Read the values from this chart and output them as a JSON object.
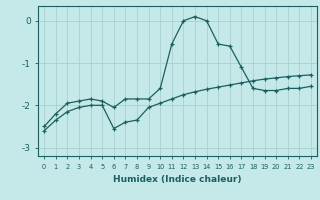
{
  "xlabel": "Humidex (Indice chaleur)",
  "x": [
    0,
    1,
    2,
    3,
    4,
    5,
    6,
    7,
    8,
    9,
    10,
    11,
    12,
    13,
    14,
    15,
    16,
    17,
    18,
    19,
    20,
    21,
    22,
    23
  ],
  "line1": [
    -2.5,
    -2.2,
    -1.95,
    -1.9,
    -1.85,
    -1.9,
    -2.05,
    -1.85,
    -1.85,
    -1.85,
    -1.6,
    -0.55,
    0.0,
    0.1,
    0.0,
    -0.55,
    -0.6,
    -1.1,
    -1.6,
    -1.65,
    -1.65,
    -1.6,
    -1.6,
    -1.55
  ],
  "line2": [
    -2.6,
    -2.35,
    -2.15,
    -2.05,
    -2.0,
    -2.0,
    -2.55,
    -2.4,
    -2.35,
    -2.05,
    -1.95,
    -1.85,
    -1.75,
    -1.68,
    -1.62,
    -1.57,
    -1.52,
    -1.47,
    -1.42,
    -1.38,
    -1.35,
    -1.32,
    -1.3,
    -1.28
  ],
  "ylim": [
    -3.2,
    0.35
  ],
  "yticks": [
    0,
    -1,
    -2,
    -3
  ],
  "bg_color": "#c5e8e8",
  "line_color": "#1a6060",
  "grid_color": "#aacfcf"
}
